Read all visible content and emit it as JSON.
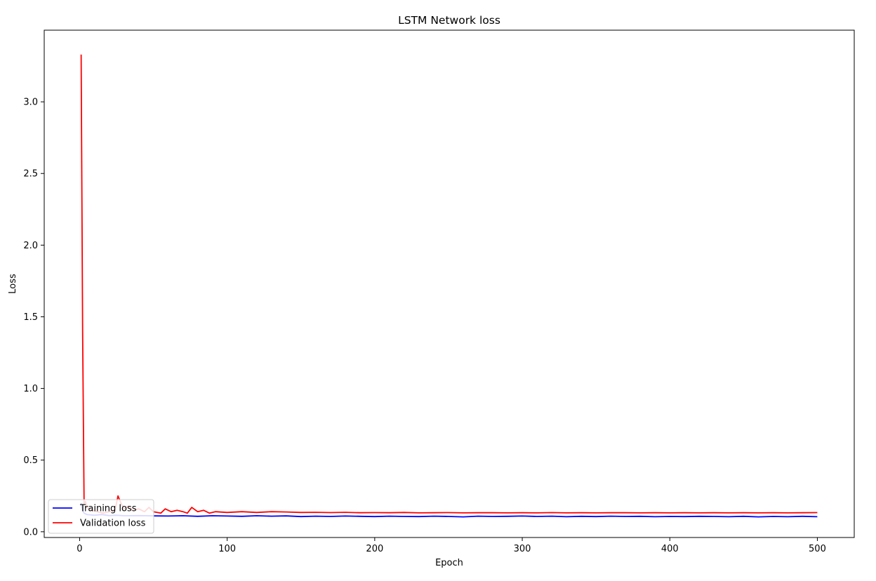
{
  "chart_data": {
    "type": "line",
    "title": "LSTM Network loss",
    "xlabel": "Epoch",
    "ylabel": "Loss",
    "xlim": [
      -24,
      525
    ],
    "ylim": [
      -0.04,
      3.5
    ],
    "xticks": [
      0,
      100,
      200,
      300,
      400,
      500
    ],
    "yticks": [
      0.0,
      0.5,
      1.0,
      1.5,
      2.0,
      2.5,
      3.0
    ],
    "xtick_labels": [
      "0",
      "100",
      "200",
      "300",
      "400",
      "500"
    ],
    "ytick_labels": [
      "0.0",
      "0.5",
      "1.0",
      "1.5",
      "2.0",
      "2.5",
      "3.0"
    ],
    "grid": false,
    "legend_position": "lower-left",
    "series": [
      {
        "name": "Training loss",
        "color": "#0000ff",
        "points": [
          [
            1,
            0.2
          ],
          [
            2,
            0.15
          ],
          [
            3,
            0.13
          ],
          [
            5,
            0.12
          ],
          [
            10,
            0.115
          ],
          [
            15,
            0.12
          ],
          [
            20,
            0.113
          ],
          [
            25,
            0.115
          ],
          [
            30,
            0.112
          ],
          [
            40,
            0.113
          ],
          [
            50,
            0.111
          ],
          [
            60,
            0.11
          ],
          [
            70,
            0.112
          ],
          [
            80,
            0.108
          ],
          [
            90,
            0.112
          ],
          [
            100,
            0.11
          ],
          [
            110,
            0.108
          ],
          [
            120,
            0.112
          ],
          [
            130,
            0.109
          ],
          [
            140,
            0.111
          ],
          [
            150,
            0.106
          ],
          [
            160,
            0.109
          ],
          [
            170,
            0.107
          ],
          [
            180,
            0.11
          ],
          [
            190,
            0.108
          ],
          [
            200,
            0.106
          ],
          [
            210,
            0.109
          ],
          [
            220,
            0.107
          ],
          [
            230,
            0.106
          ],
          [
            240,
            0.109
          ],
          [
            250,
            0.107
          ],
          [
            260,
            0.104
          ],
          [
            270,
            0.109
          ],
          [
            280,
            0.107
          ],
          [
            290,
            0.108
          ],
          [
            300,
            0.11
          ],
          [
            310,
            0.107
          ],
          [
            320,
            0.109
          ],
          [
            330,
            0.105
          ],
          [
            340,
            0.108
          ],
          [
            350,
            0.106
          ],
          [
            360,
            0.109
          ],
          [
            370,
            0.107
          ],
          [
            380,
            0.108
          ],
          [
            390,
            0.105
          ],
          [
            400,
            0.107
          ],
          [
            410,
            0.106
          ],
          [
            420,
            0.108
          ],
          [
            430,
            0.107
          ],
          [
            440,
            0.105
          ],
          [
            450,
            0.108
          ],
          [
            460,
            0.104
          ],
          [
            470,
            0.107
          ],
          [
            480,
            0.105
          ],
          [
            490,
            0.108
          ],
          [
            500,
            0.105
          ]
        ]
      },
      {
        "name": "Validation loss",
        "color": "#ff0000",
        "points": [
          [
            1,
            3.33
          ],
          [
            2,
            1.4
          ],
          [
            3,
            0.2
          ],
          [
            4,
            0.21
          ],
          [
            5,
            0.17
          ],
          [
            8,
            0.15
          ],
          [
            12,
            0.14
          ],
          [
            16,
            0.13
          ],
          [
            20,
            0.14
          ],
          [
            24,
            0.15
          ],
          [
            26,
            0.25
          ],
          [
            28,
            0.2
          ],
          [
            30,
            0.16
          ],
          [
            33,
            0.18
          ],
          [
            36,
            0.15
          ],
          [
            40,
            0.16
          ],
          [
            44,
            0.14
          ],
          [
            47,
            0.17
          ],
          [
            50,
            0.14
          ],
          [
            55,
            0.13
          ],
          [
            58,
            0.16
          ],
          [
            62,
            0.14
          ],
          [
            66,
            0.15
          ],
          [
            70,
            0.14
          ],
          [
            73,
            0.13
          ],
          [
            76,
            0.17
          ],
          [
            80,
            0.14
          ],
          [
            84,
            0.15
          ],
          [
            88,
            0.13
          ],
          [
            92,
            0.14
          ],
          [
            100,
            0.135
          ],
          [
            110,
            0.14
          ],
          [
            120,
            0.135
          ],
          [
            130,
            0.14
          ],
          [
            140,
            0.138
          ],
          [
            150,
            0.135
          ],
          [
            160,
            0.136
          ],
          [
            170,
            0.134
          ],
          [
            180,
            0.136
          ],
          [
            190,
            0.133
          ],
          [
            200,
            0.134
          ],
          [
            210,
            0.133
          ],
          [
            220,
            0.135
          ],
          [
            230,
            0.132
          ],
          [
            240,
            0.133
          ],
          [
            250,
            0.134
          ],
          [
            260,
            0.132
          ],
          [
            270,
            0.133
          ],
          [
            280,
            0.133
          ],
          [
            290,
            0.132
          ],
          [
            300,
            0.133
          ],
          [
            310,
            0.132
          ],
          [
            320,
            0.134
          ],
          [
            330,
            0.132
          ],
          [
            340,
            0.133
          ],
          [
            350,
            0.132
          ],
          [
            360,
            0.133
          ],
          [
            370,
            0.133
          ],
          [
            380,
            0.132
          ],
          [
            390,
            0.133
          ],
          [
            400,
            0.132
          ],
          [
            410,
            0.133
          ],
          [
            420,
            0.132
          ],
          [
            430,
            0.133
          ],
          [
            440,
            0.132
          ],
          [
            450,
            0.133
          ],
          [
            460,
            0.132
          ],
          [
            470,
            0.133
          ],
          [
            480,
            0.132
          ],
          [
            490,
            0.133
          ],
          [
            500,
            0.134
          ]
        ]
      }
    ]
  }
}
